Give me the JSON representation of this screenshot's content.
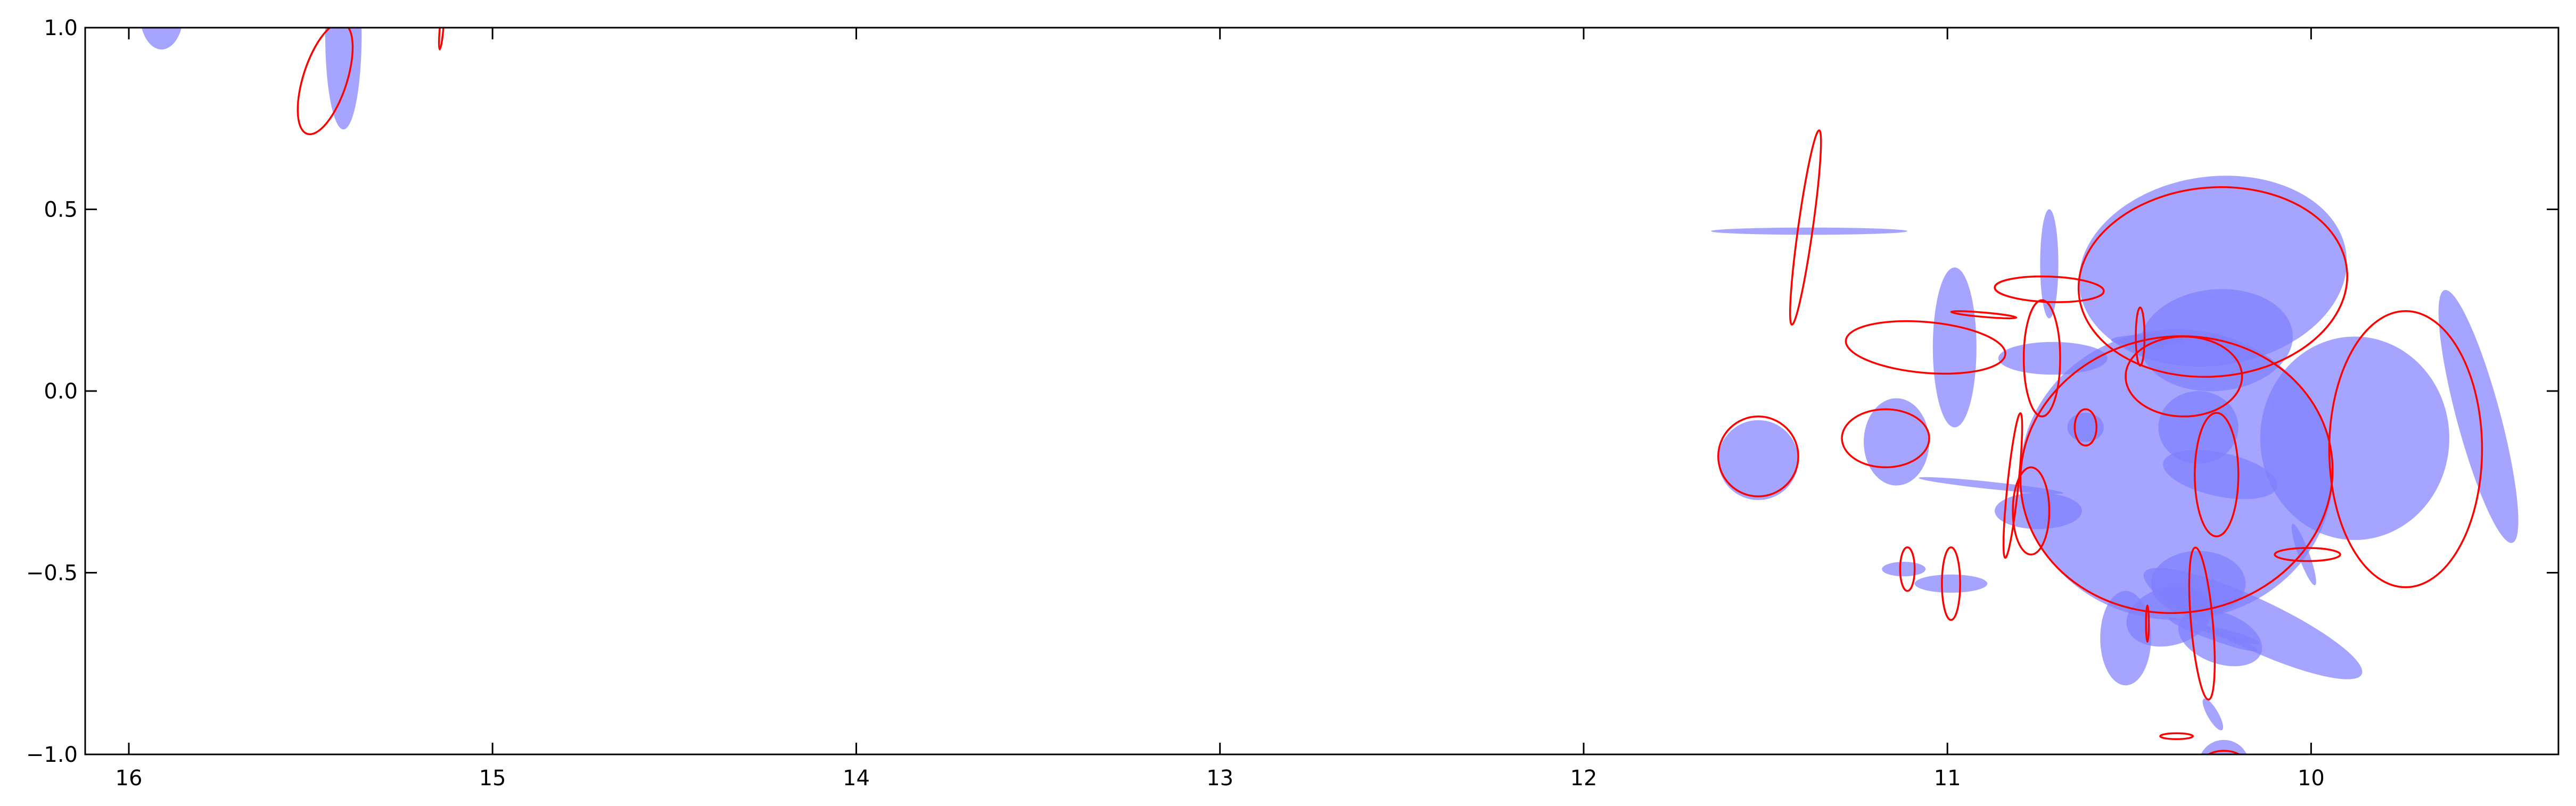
{
  "chart_data": {
    "type": "scatter",
    "title": "",
    "xlabel": "",
    "ylabel": "",
    "xlim": [
      16.12,
      9.32
    ],
    "ylim": [
      -1.0,
      1.0
    ],
    "x_inverted": true,
    "grid": false,
    "legend": "none",
    "x_ticks": [
      16,
      15,
      14,
      13,
      12,
      11,
      10
    ],
    "x_tick_labels": [
      "16",
      "15",
      "14",
      "13",
      "12",
      "11",
      "10"
    ],
    "y_ticks": [
      1.0,
      0.5,
      0.0,
      -0.5,
      -1.0
    ],
    "y_tick_labels": [
      "1.0",
      "0.5",
      "0.0",
      "−0.5",
      "−1.0"
    ],
    "colors": {
      "filled": "#7f7fff",
      "outline": "#ff0000"
    },
    "series": [
      {
        "style": "filled",
        "color": "#7f7fff",
        "opacity": 0.7,
        "ellipses": [
          {
            "cx": 15.91,
            "cy": 1.04,
            "rx": 0.06,
            "ry": 0.1,
            "angle": 0
          },
          {
            "cx": 15.41,
            "cy": 0.98,
            "rx": 0.05,
            "ry": 0.26,
            "angle": 0
          },
          {
            "cx": 11.38,
            "cy": 0.44,
            "rx": 0.27,
            "ry": 0.01,
            "angle": 0
          },
          {
            "cx": 10.27,
            "cy": 0.33,
            "rx": 0.37,
            "ry": 0.26,
            "angle": 8
          },
          {
            "cx": 10.26,
            "cy": 0.14,
            "rx": 0.21,
            "ry": 0.14,
            "angle": 5
          },
          {
            "cx": 10.72,
            "cy": 0.35,
            "rx": 0.025,
            "ry": 0.15,
            "angle": 0
          },
          {
            "cx": 10.98,
            "cy": 0.12,
            "rx": 0.06,
            "ry": 0.22,
            "angle": 0
          },
          {
            "cx": 10.71,
            "cy": 0.09,
            "rx": 0.15,
            "ry": 0.045,
            "angle": 0
          },
          {
            "cx": 10.45,
            "cy": 0.14,
            "rx": 0.1,
            "ry": 0.015,
            "angle": 0
          },
          {
            "cx": 10.31,
            "cy": -0.1,
            "rx": 0.11,
            "ry": 0.1,
            "angle": 0
          },
          {
            "cx": 10.37,
            "cy": -0.23,
            "rx": 0.43,
            "ry": 0.4,
            "angle": 0
          },
          {
            "cx": 9.88,
            "cy": -0.13,
            "rx": 0.26,
            "ry": 0.28,
            "angle": 0
          },
          {
            "cx": 9.54,
            "cy": -0.07,
            "rx": 0.06,
            "ry": 0.36,
            "angle": 15
          },
          {
            "cx": 10.62,
            "cy": -0.1,
            "rx": 0.05,
            "ry": 0.04,
            "angle": 0
          },
          {
            "cx": 11.14,
            "cy": -0.14,
            "rx": 0.09,
            "ry": 0.12,
            "angle": 0
          },
          {
            "cx": 11.52,
            "cy": -0.19,
            "rx": 0.11,
            "ry": 0.11,
            "angle": 0
          },
          {
            "cx": 10.88,
            "cy": -0.26,
            "rx": 0.2,
            "ry": 0.01,
            "angle": -6
          },
          {
            "cx": 10.25,
            "cy": -0.23,
            "rx": 0.16,
            "ry": 0.06,
            "angle": -12
          },
          {
            "cx": 10.75,
            "cy": -0.33,
            "rx": 0.12,
            "ry": 0.05,
            "angle": 0
          },
          {
            "cx": 10.02,
            "cy": -0.45,
            "rx": 0.015,
            "ry": 0.09,
            "angle": 20
          },
          {
            "cx": 11.12,
            "cy": -0.49,
            "rx": 0.06,
            "ry": 0.02,
            "angle": 0
          },
          {
            "cx": 10.99,
            "cy": -0.53,
            "rx": 0.1,
            "ry": 0.025,
            "angle": 0
          },
          {
            "cx": 10.31,
            "cy": -0.53,
            "rx": 0.13,
            "ry": 0.09,
            "angle": 0
          },
          {
            "cx": 10.16,
            "cy": -0.64,
            "rx": 0.33,
            "ry": 0.07,
            "angle": -25
          },
          {
            "cx": 10.39,
            "cy": -0.62,
            "rx": 0.12,
            "ry": 0.08,
            "angle": 15
          },
          {
            "cx": 10.51,
            "cy": -0.68,
            "rx": 0.07,
            "ry": 0.13,
            "angle": 0
          },
          {
            "cx": 10.23,
            "cy": -0.67,
            "rx": 0.09,
            "ry": 0.012,
            "angle": -15
          },
          {
            "cx": 10.27,
            "cy": -0.67,
            "rx": 0.13,
            "ry": 0.015,
            "angle": -20
          },
          {
            "cx": 10.25,
            "cy": -0.68,
            "rx": 0.12,
            "ry": 0.07,
            "angle": -20
          },
          {
            "cx": 10.27,
            "cy": -0.89,
            "rx": 0.015,
            "ry": 0.05,
            "angle": 30
          },
          {
            "cx": 10.24,
            "cy": -1.03,
            "rx": 0.07,
            "ry": 0.07,
            "angle": 0
          }
        ]
      },
      {
        "style": "outline",
        "color": "#ff0000",
        "opacity": 1,
        "ellipses": [
          {
            "cx": 15.46,
            "cy": 0.86,
            "rx": 0.06,
            "ry": 0.16,
            "angle": -18
          },
          {
            "cx": 15.14,
            "cy": 1.0,
            "rx": 0.005,
            "ry": 0.06,
            "angle": -5
          },
          {
            "cx": 11.39,
            "cy": 0.45,
            "rx": 0.02,
            "ry": 0.27,
            "angle": -8
          },
          {
            "cx": 10.27,
            "cy": 0.3,
            "rx": 0.37,
            "ry": 0.26,
            "angle": 5
          },
          {
            "cx": 10.72,
            "cy": 0.28,
            "rx": 0.15,
            "ry": 0.035,
            "angle": -2
          },
          {
            "cx": 10.9,
            "cy": 0.21,
            "rx": 0.09,
            "ry": 0.006,
            "angle": -5
          },
          {
            "cx": 11.06,
            "cy": 0.12,
            "rx": 0.22,
            "ry": 0.07,
            "angle": -5
          },
          {
            "cx": 10.74,
            "cy": 0.09,
            "rx": 0.05,
            "ry": 0.16,
            "angle": 0
          },
          {
            "cx": 10.47,
            "cy": 0.15,
            "rx": 0.012,
            "ry": 0.08,
            "angle": 0
          },
          {
            "cx": 10.35,
            "cy": 0.04,
            "rx": 0.16,
            "ry": 0.11,
            "angle": 0
          },
          {
            "cx": 10.37,
            "cy": -0.23,
            "rx": 0.43,
            "ry": 0.38,
            "angle": 8
          },
          {
            "cx": 9.74,
            "cy": -0.16,
            "rx": 0.21,
            "ry": 0.38,
            "angle": 0
          },
          {
            "cx": 10.62,
            "cy": -0.1,
            "rx": 0.03,
            "ry": 0.05,
            "angle": 0
          },
          {
            "cx": 11.17,
            "cy": -0.13,
            "rx": 0.12,
            "ry": 0.08,
            "angle": 0
          },
          {
            "cx": 11.52,
            "cy": -0.18,
            "rx": 0.11,
            "ry": 0.11,
            "angle": 0
          },
          {
            "cx": 10.26,
            "cy": -0.23,
            "rx": 0.06,
            "ry": 0.17,
            "angle": 0
          },
          {
            "cx": 10.82,
            "cy": -0.26,
            "rx": 0.015,
            "ry": 0.2,
            "angle": -6
          },
          {
            "cx": 10.77,
            "cy": -0.33,
            "rx": 0.05,
            "ry": 0.12,
            "angle": 0
          },
          {
            "cx": 10.01,
            "cy": -0.45,
            "rx": 0.09,
            "ry": 0.018,
            "angle": 0
          },
          {
            "cx": 11.11,
            "cy": -0.49,
            "rx": 0.02,
            "ry": 0.06,
            "angle": 0
          },
          {
            "cx": 10.99,
            "cy": -0.53,
            "rx": 0.025,
            "ry": 0.1,
            "angle": 0
          },
          {
            "cx": 10.3,
            "cy": -0.64,
            "rx": 0.03,
            "ry": 0.21,
            "angle": 5
          },
          {
            "cx": 10.45,
            "cy": -0.64,
            "rx": 0.004,
            "ry": 0.05,
            "angle": 0
          },
          {
            "cx": 10.37,
            "cy": -0.95,
            "rx": 0.045,
            "ry": 0.008,
            "angle": 0
          },
          {
            "cx": 10.24,
            "cy": -1.04,
            "rx": 0.07,
            "ry": 0.05,
            "angle": 0
          }
        ]
      }
    ]
  }
}
